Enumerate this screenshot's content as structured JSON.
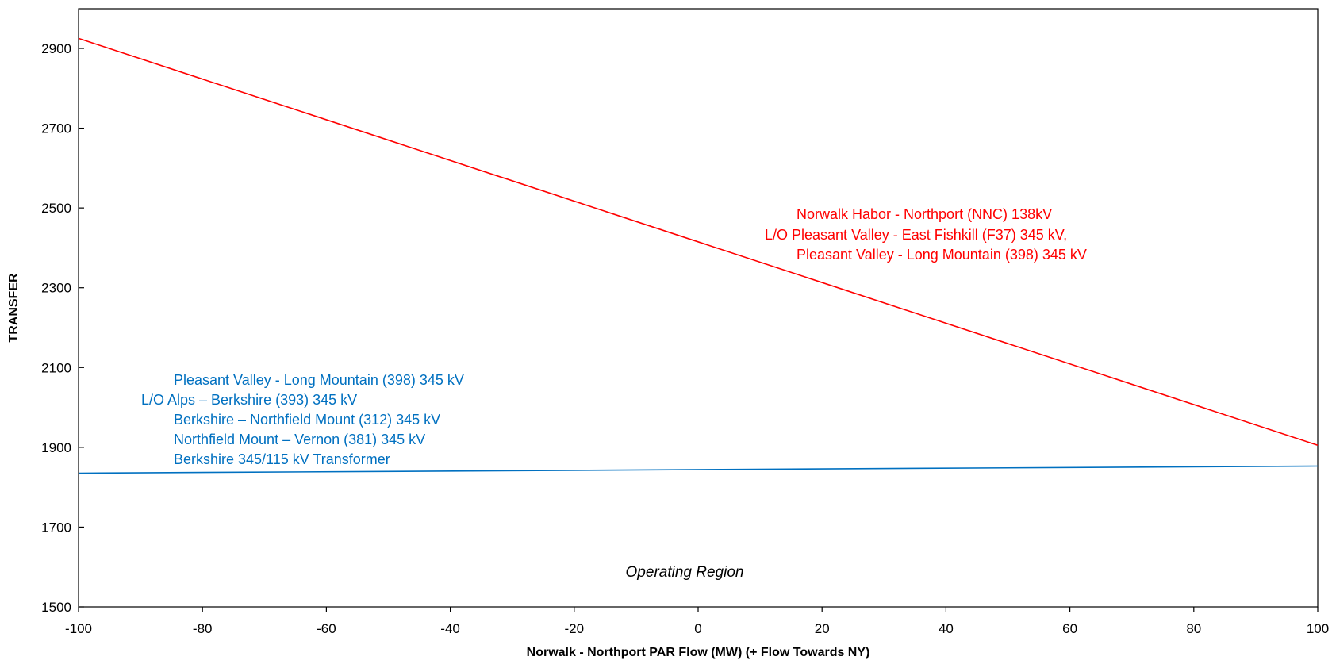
{
  "chart_data": {
    "type": "line",
    "title": "",
    "xlabel": "Norwalk - Northport PAR Flow (MW) (+ Flow Towards NY)",
    "ylabel": "TRANSFER",
    "xlim": [
      -100,
      100
    ],
    "ylim": [
      1500,
      3000
    ],
    "x_ticks": [
      -100,
      -80,
      -60,
      -40,
      -20,
      0,
      20,
      40,
      60,
      80,
      100
    ],
    "y_ticks": [
      1500,
      1700,
      1900,
      2100,
      2300,
      2500,
      2700,
      2900
    ],
    "grid": false,
    "legend": "none",
    "series": [
      {
        "color": "#ff0000",
        "x": [
          -100,
          100
        ],
        "y": [
          2925,
          1905
        ]
      },
      {
        "color": "#0070c0",
        "x": [
          -100,
          100
        ],
        "y": [
          1835,
          1853
        ]
      }
    ],
    "annotations": {
      "red": {
        "color": "#ff0000",
        "lines": [
          "Norwalk Habor - Northport (NNC)  138kV",
          "L/O Pleasant  Valley - East Fishkill (F37)  345 kV,",
          "Pleasant  Valley - Long Mountain  (398)  345 kV"
        ]
      },
      "blue": {
        "color": "#0070c0",
        "lines": [
          "Pleasant Valley - Long Mountain (398)  345 kV",
          "L/O Alps – Berkshire (393)  345 kV",
          "Berkshire – Northfield Mount (312)  345 kV",
          "Northfield Mount – Vernon (381)  345 kV",
          "Berkshire 345/115 kV Transformer"
        ]
      },
      "region": "Operating Region"
    }
  }
}
